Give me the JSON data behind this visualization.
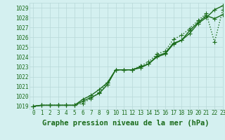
{
  "background_color": "#d4f0f0",
  "grid_color": "#b8d8d8",
  "line_color": "#1a6b1a",
  "title": "Graphe pression niveau de la mer (hPa)",
  "xlim": [
    -0.5,
    23
  ],
  "ylim": [
    1018.7,
    1029.5
  ],
  "yticks": [
    1019,
    1020,
    1021,
    1022,
    1023,
    1024,
    1025,
    1026,
    1027,
    1028,
    1029
  ],
  "xticks": [
    0,
    1,
    2,
    3,
    4,
    5,
    6,
    7,
    8,
    9,
    10,
    11,
    12,
    13,
    14,
    15,
    16,
    17,
    18,
    19,
    20,
    21,
    22,
    23
  ],
  "series1_x": [
    0,
    1,
    2,
    3,
    4,
    5,
    6,
    7,
    8,
    9,
    10,
    11,
    12,
    13,
    14,
    15,
    16,
    17,
    18,
    19,
    20,
    21,
    22,
    23
  ],
  "series1_y": [
    1019.0,
    1019.1,
    1019.1,
    1019.1,
    1019.1,
    1019.1,
    1019.5,
    1019.9,
    1020.3,
    1021.2,
    1022.7,
    1022.7,
    1022.7,
    1023.0,
    1023.3,
    1024.0,
    1024.3,
    1025.3,
    1025.7,
    1026.4,
    1027.4,
    1028.0,
    1028.8,
    1029.2
  ],
  "series2_x": [
    0,
    1,
    2,
    3,
    4,
    5,
    6,
    7,
    8,
    9,
    10,
    11,
    12,
    13,
    14,
    15,
    16,
    17,
    18,
    19,
    20,
    21,
    22,
    23
  ],
  "series2_y": [
    1019.0,
    1019.1,
    1019.1,
    1019.1,
    1019.1,
    1019.1,
    1019.7,
    1020.1,
    1020.7,
    1021.4,
    1022.7,
    1022.7,
    1022.7,
    1022.9,
    1023.3,
    1024.1,
    1024.4,
    1025.4,
    1025.7,
    1026.7,
    1027.5,
    1028.2,
    1027.9,
    1028.3
  ],
  "series3_x": [
    0,
    1,
    2,
    3,
    4,
    5,
    6,
    7,
    8,
    9,
    10,
    11,
    12,
    13,
    14,
    15,
    16,
    17,
    18,
    19,
    20,
    21,
    22,
    23
  ],
  "series3_y": [
    1019.0,
    1019.1,
    1019.1,
    1019.1,
    1019.1,
    1019.1,
    1019.3,
    1019.8,
    1020.4,
    1021.4,
    1022.7,
    1022.7,
    1022.7,
    1023.1,
    1023.5,
    1024.3,
    1024.6,
    1025.8,
    1026.2,
    1026.9,
    1027.7,
    1028.4,
    1025.5,
    1028.8
  ],
  "marker_size": 2.5,
  "linewidth": 1.0,
  "title_fontsize": 7.5,
  "tick_fontsize": 5.5
}
